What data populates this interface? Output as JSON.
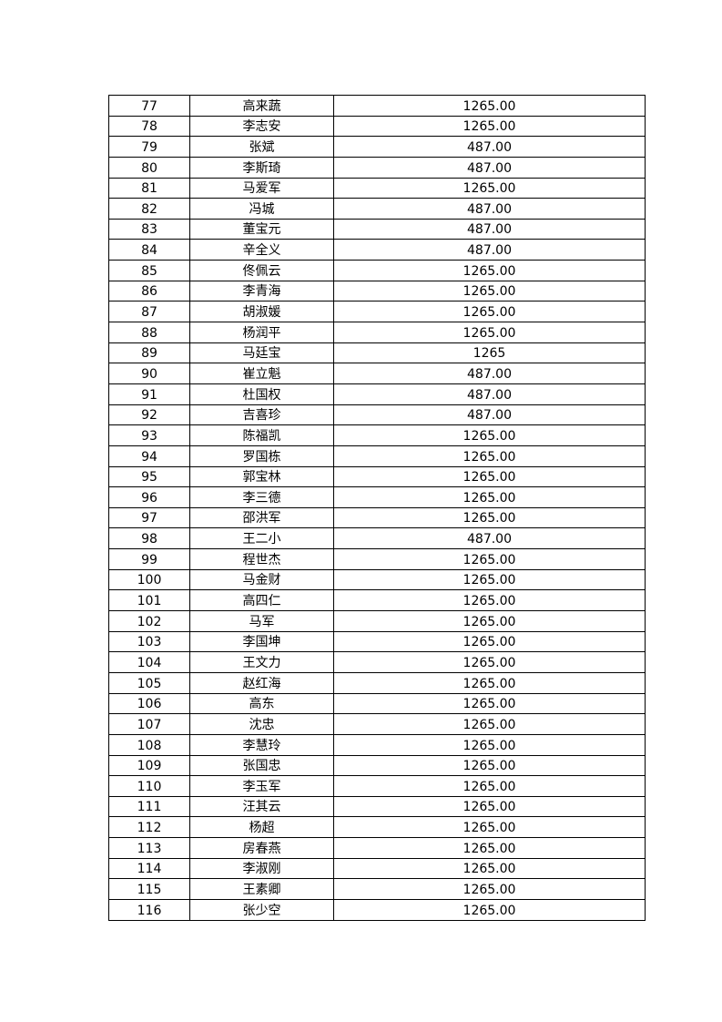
{
  "table": {
    "rows": [
      {
        "no": "77",
        "name": "高来蔬",
        "amount": "1265.00"
      },
      {
        "no": "78",
        "name": "李志安",
        "amount": "1265.00"
      },
      {
        "no": "79",
        "name": "张斌",
        "amount": "487.00"
      },
      {
        "no": "80",
        "name": "李斯琦",
        "amount": "487.00"
      },
      {
        "no": "81",
        "name": "马爱军",
        "amount": "1265.00"
      },
      {
        "no": "82",
        "name": "冯城",
        "amount": "487.00"
      },
      {
        "no": "83",
        "name": "董宝元",
        "amount": "487.00"
      },
      {
        "no": "84",
        "name": "辛全义",
        "amount": "487.00"
      },
      {
        "no": "85",
        "name": "佟佩云",
        "amount": "1265.00"
      },
      {
        "no": "86",
        "name": "李青海",
        "amount": "1265.00"
      },
      {
        "no": "87",
        "name": "胡淑媛",
        "amount": "1265.00"
      },
      {
        "no": "88",
        "name": "杨润平",
        "amount": "1265.00"
      },
      {
        "no": "89",
        "name": "马廷宝",
        "amount": "1265"
      },
      {
        "no": "90",
        "name": "崔立魁",
        "amount": "487.00"
      },
      {
        "no": "91",
        "name": "杜国权",
        "amount": "487.00"
      },
      {
        "no": "92",
        "name": "吉喜珍",
        "amount": "487.00"
      },
      {
        "no": "93",
        "name": "陈福凯",
        "amount": "1265.00"
      },
      {
        "no": "94",
        "name": "罗国栋",
        "amount": "1265.00"
      },
      {
        "no": "95",
        "name": "郭宝林",
        "amount": "1265.00"
      },
      {
        "no": "96",
        "name": "李三德",
        "amount": "1265.00"
      },
      {
        "no": "97",
        "name": "邵洪军",
        "amount": "1265.00"
      },
      {
        "no": "98",
        "name": "王二小",
        "amount": "487.00"
      },
      {
        "no": "99",
        "name": "程世杰",
        "amount": "1265.00"
      },
      {
        "no": "100",
        "name": "马金财",
        "amount": "1265.00"
      },
      {
        "no": "101",
        "name": "高四仁",
        "amount": "1265.00"
      },
      {
        "no": "102",
        "name": "马军",
        "amount": "1265.00"
      },
      {
        "no": "103",
        "name": "李国坤",
        "amount": "1265.00"
      },
      {
        "no": "104",
        "name": "王文力",
        "amount": "1265.00"
      },
      {
        "no": "105",
        "name": "赵红海",
        "amount": "1265.00"
      },
      {
        "no": "106",
        "name": "高东",
        "amount": "1265.00"
      },
      {
        "no": "107",
        "name": "沈忠",
        "amount": "1265.00"
      },
      {
        "no": "108",
        "name": "李慧玲",
        "amount": "1265.00"
      },
      {
        "no": "109",
        "name": "张国忠",
        "amount": "1265.00"
      },
      {
        "no": "110",
        "name": "李玉军",
        "amount": "1265.00"
      },
      {
        "no": "111",
        "name": "汪其云",
        "amount": "1265.00"
      },
      {
        "no": "112",
        "name": "杨超",
        "amount": "1265.00"
      },
      {
        "no": "113",
        "name": "房春燕",
        "amount": "1265.00"
      },
      {
        "no": "114",
        "name": "李淑刚",
        "amount": "1265.00"
      },
      {
        "no": "115",
        "name": "王素卿",
        "amount": "1265.00"
      },
      {
        "no": "116",
        "name": "张少空",
        "amount": "1265.00"
      }
    ]
  }
}
